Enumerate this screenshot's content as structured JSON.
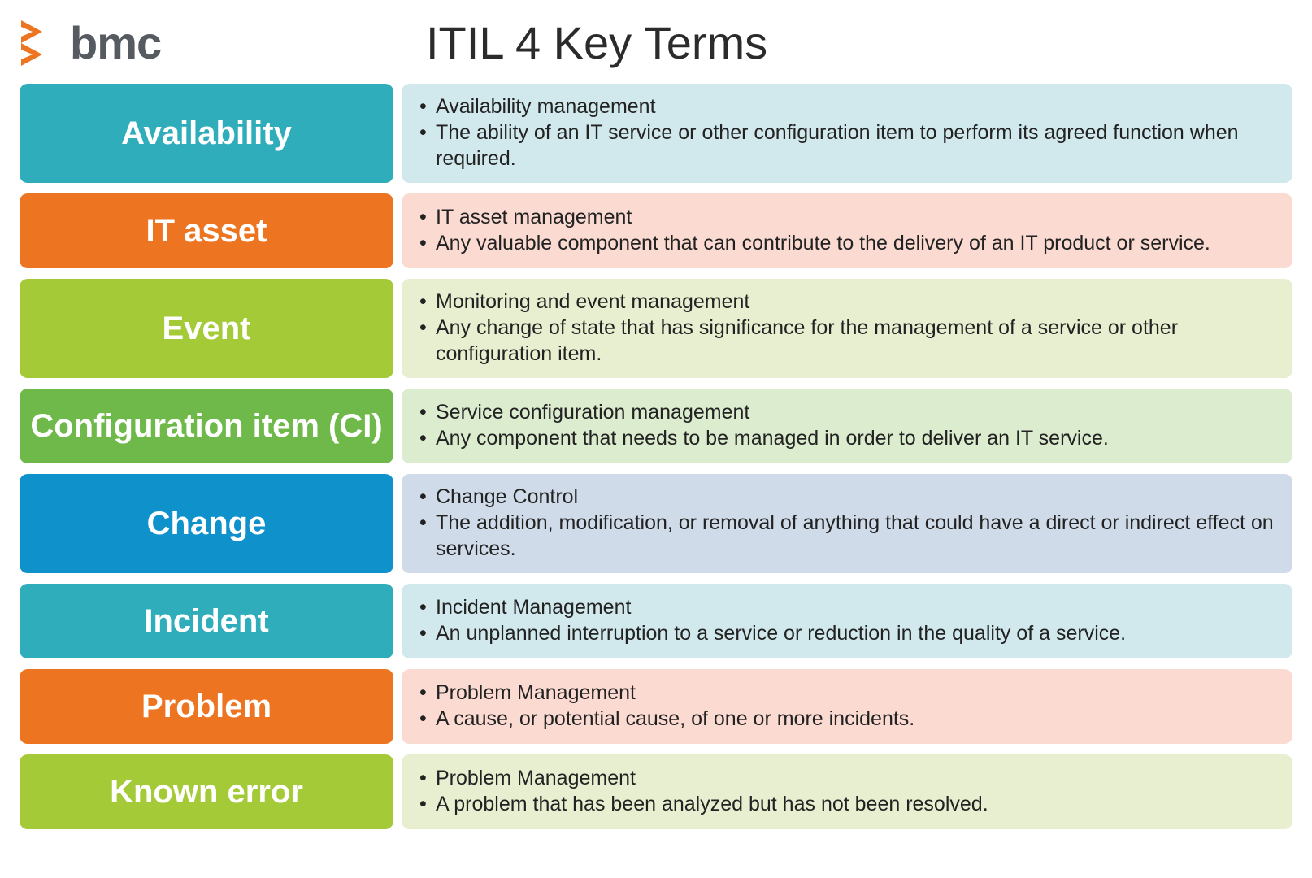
{
  "brand": {
    "name": "bmc",
    "logo_color": "#ed7420"
  },
  "title": "ITIL 4 Key Terms",
  "colors": {
    "teal": {
      "term": "#2fadbb",
      "desc": "#d1e9ec"
    },
    "orange": {
      "term": "#ed7420",
      "desc": "#fadad1"
    },
    "lime": {
      "term": "#a4ca38",
      "desc": "#e7efd0"
    },
    "green": {
      "term": "#6eb94a",
      "desc": "#dceccf"
    },
    "blue": {
      "term": "#0f92cb",
      "desc": "#cfdbe8"
    }
  },
  "rows": [
    {
      "color": "teal",
      "term": "Availability",
      "bullets": [
        "Availability management",
        "The ability of an IT service or other configuration item to perform its agreed function when required."
      ]
    },
    {
      "color": "orange",
      "term": "IT asset",
      "bullets": [
        "IT asset management",
        "Any valuable component that can contribute to the delivery of an IT product or service."
      ]
    },
    {
      "color": "lime",
      "term": "Event",
      "bullets": [
        "Monitoring and event management",
        "Any change of state that has significance for the management of a service or other configuration item."
      ]
    },
    {
      "color": "green",
      "term": "Configuration item (CI)",
      "bullets": [
        "Service configuration management",
        "Any component that needs to be managed in order to deliver an IT service."
      ]
    },
    {
      "color": "blue",
      "term": "Change",
      "bullets": [
        "Change Control",
        "The addition, modification, or removal of anything that could have a direct or indirect effect on services."
      ]
    },
    {
      "color": "teal",
      "term": "Incident",
      "bullets": [
        "Incident Management",
        "An unplanned interruption to a service or reduction in the quality of a service."
      ]
    },
    {
      "color": "orange",
      "term": "Problem",
      "bullets": [
        "Problem Management",
        "A cause, or potential cause, of one or more incidents."
      ]
    },
    {
      "color": "lime",
      "term": "Known error",
      "bullets": [
        "Problem Management",
        "A problem that has been analyzed but has not been resolved."
      ]
    }
  ]
}
